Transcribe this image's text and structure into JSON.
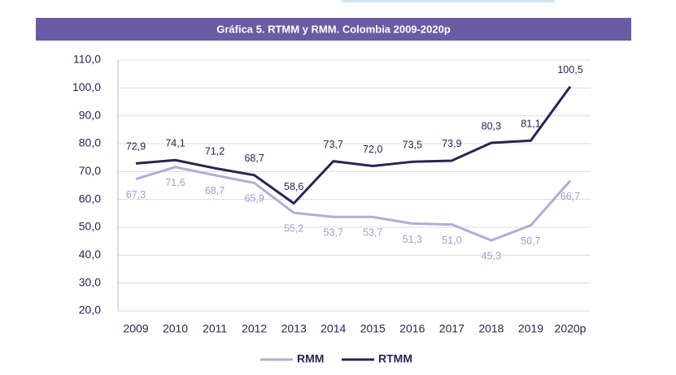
{
  "chart_data": {
    "type": "line",
    "title": "Gráfica 5. RTMM y RMM. Colombia 2009-2020p",
    "categories": [
      "2009",
      "2010",
      "2011",
      "2012",
      "2013",
      "2014",
      "2015",
      "2016",
      "2017",
      "2018",
      "2019",
      "2020p"
    ],
    "series": [
      {
        "name": "RMM",
        "color": "#b3acd4",
        "values": [
          67.3,
          71.6,
          68.7,
          65.9,
          55.2,
          53.7,
          53.7,
          51.3,
          51.0,
          45.3,
          50.7,
          66.7
        ],
        "value_labels": [
          "67,3",
          "71,6",
          "68,7",
          "65,9",
          "55,2",
          "53,7",
          "53,7",
          "51,3",
          "51,0",
          "45,3",
          "50,7",
          "66,7"
        ]
      },
      {
        "name": "RTMM",
        "color": "#2a2350",
        "values": [
          72.9,
          74.1,
          71.2,
          68.7,
          58.6,
          73.7,
          72.0,
          73.5,
          73.9,
          80.3,
          81.1,
          100.5
        ],
        "value_labels": [
          "72,9",
          "74,1",
          "71,2",
          "68,7",
          "58,6",
          "73,7",
          "72,0",
          "73,5",
          "73,9",
          "80,3",
          "81,1",
          "100,5"
        ]
      }
    ],
    "ylim": [
      20,
      110
    ],
    "yticks": [
      {
        "value": 20,
        "label": "20,0"
      },
      {
        "value": 30,
        "label": "30,0"
      },
      {
        "value": 40,
        "label": "40,0"
      },
      {
        "value": 50,
        "label": "50,0"
      },
      {
        "value": 60,
        "label": "60,0"
      },
      {
        "value": 70,
        "label": "70,0"
      },
      {
        "value": 80,
        "label": "80,0"
      },
      {
        "value": 90,
        "label": "90,0"
      },
      {
        "value": 100,
        "label": "100,0"
      },
      {
        "value": 110,
        "label": "110,0"
      }
    ],
    "grid": true,
    "legend": "bottom"
  }
}
